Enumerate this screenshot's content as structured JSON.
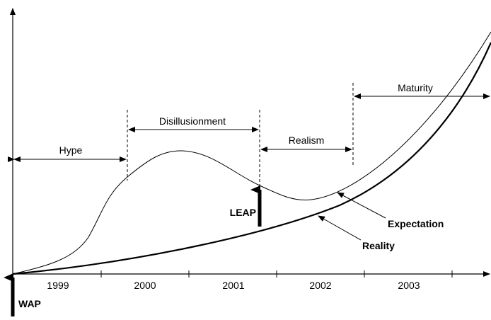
{
  "axis": {
    "years": [
      "1999",
      "2000",
      "2001",
      "2002",
      "2003"
    ]
  },
  "phases": [
    {
      "label": "Hype"
    },
    {
      "label": "Disillusionment"
    },
    {
      "label": "Realism"
    },
    {
      "label": "Maturity"
    }
  ],
  "curves": [
    {
      "label": "Expectation"
    },
    {
      "label": "Reality"
    }
  ],
  "markers": [
    {
      "label": "LEAP"
    },
    {
      "label": "WAP"
    }
  ]
}
